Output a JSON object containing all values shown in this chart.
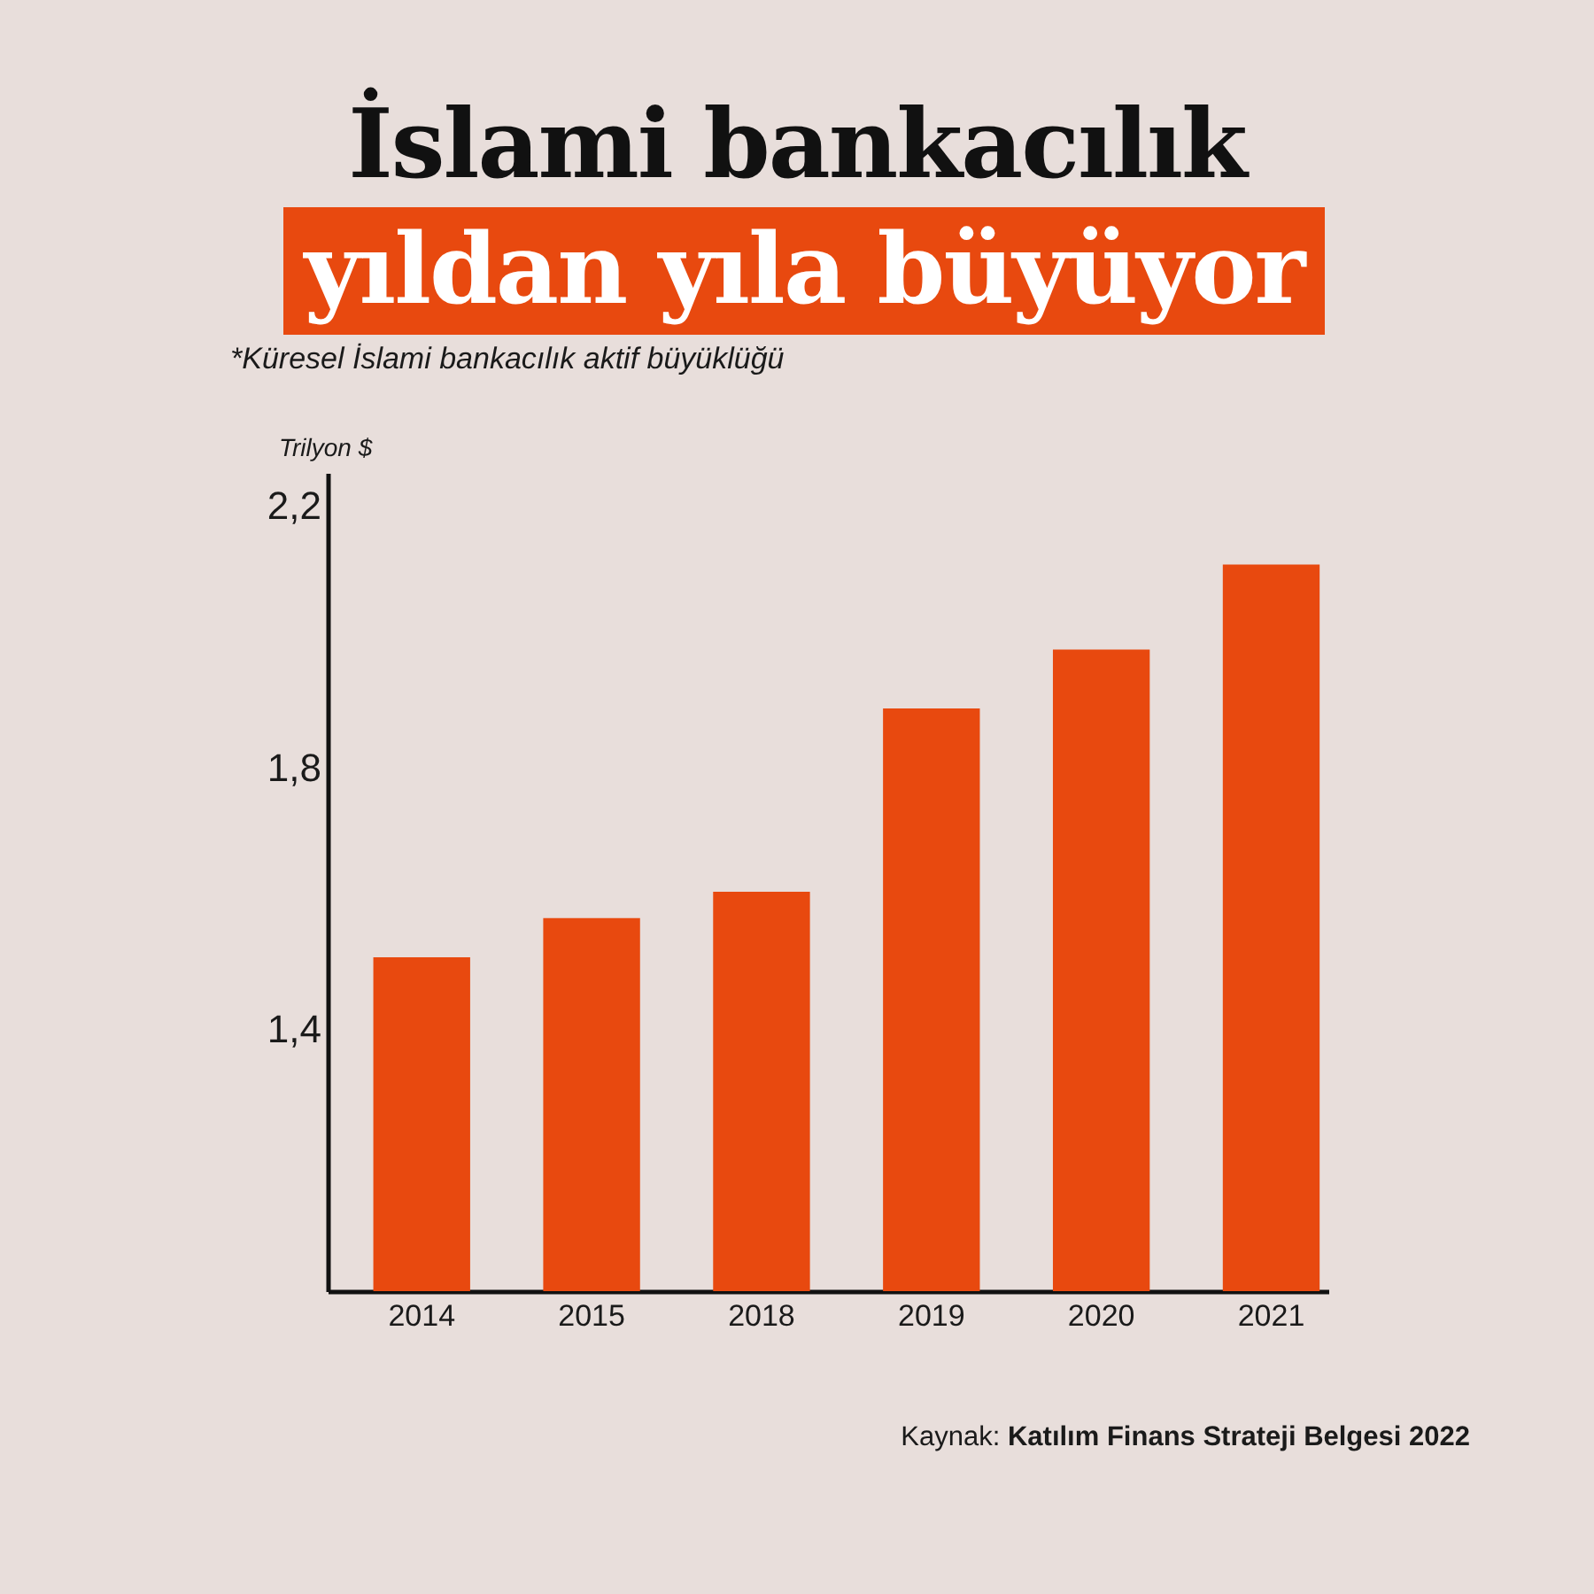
{
  "chart_data": {
    "type": "bar",
    "title": "İslami bankacılık\nyıldan yıla büyüyor",
    "subtitle": "*Küresel İslami bankacılık aktif büyüklüğü",
    "ylabel": "Trilyon $",
    "annotations": [
      "Kaynak: Katılım Finans Strateji Belgesi 2022"
    ],
    "categories": [
      "2014",
      "2015",
      "2018",
      "2019",
      "2020",
      "2021"
    ],
    "values": [
      1.51,
      1.57,
      1.61,
      1.89,
      1.98,
      2.11
    ],
    "color": "#e8490f",
    "ylim": [
      1.0,
      2.25
    ],
    "yticks": [
      {
        "value": 1.4,
        "label": "1,4"
      },
      {
        "value": 1.8,
        "label": "1,8"
      },
      {
        "value": 2.2,
        "label": "2,2"
      }
    ],
    "grid": false
  }
}
